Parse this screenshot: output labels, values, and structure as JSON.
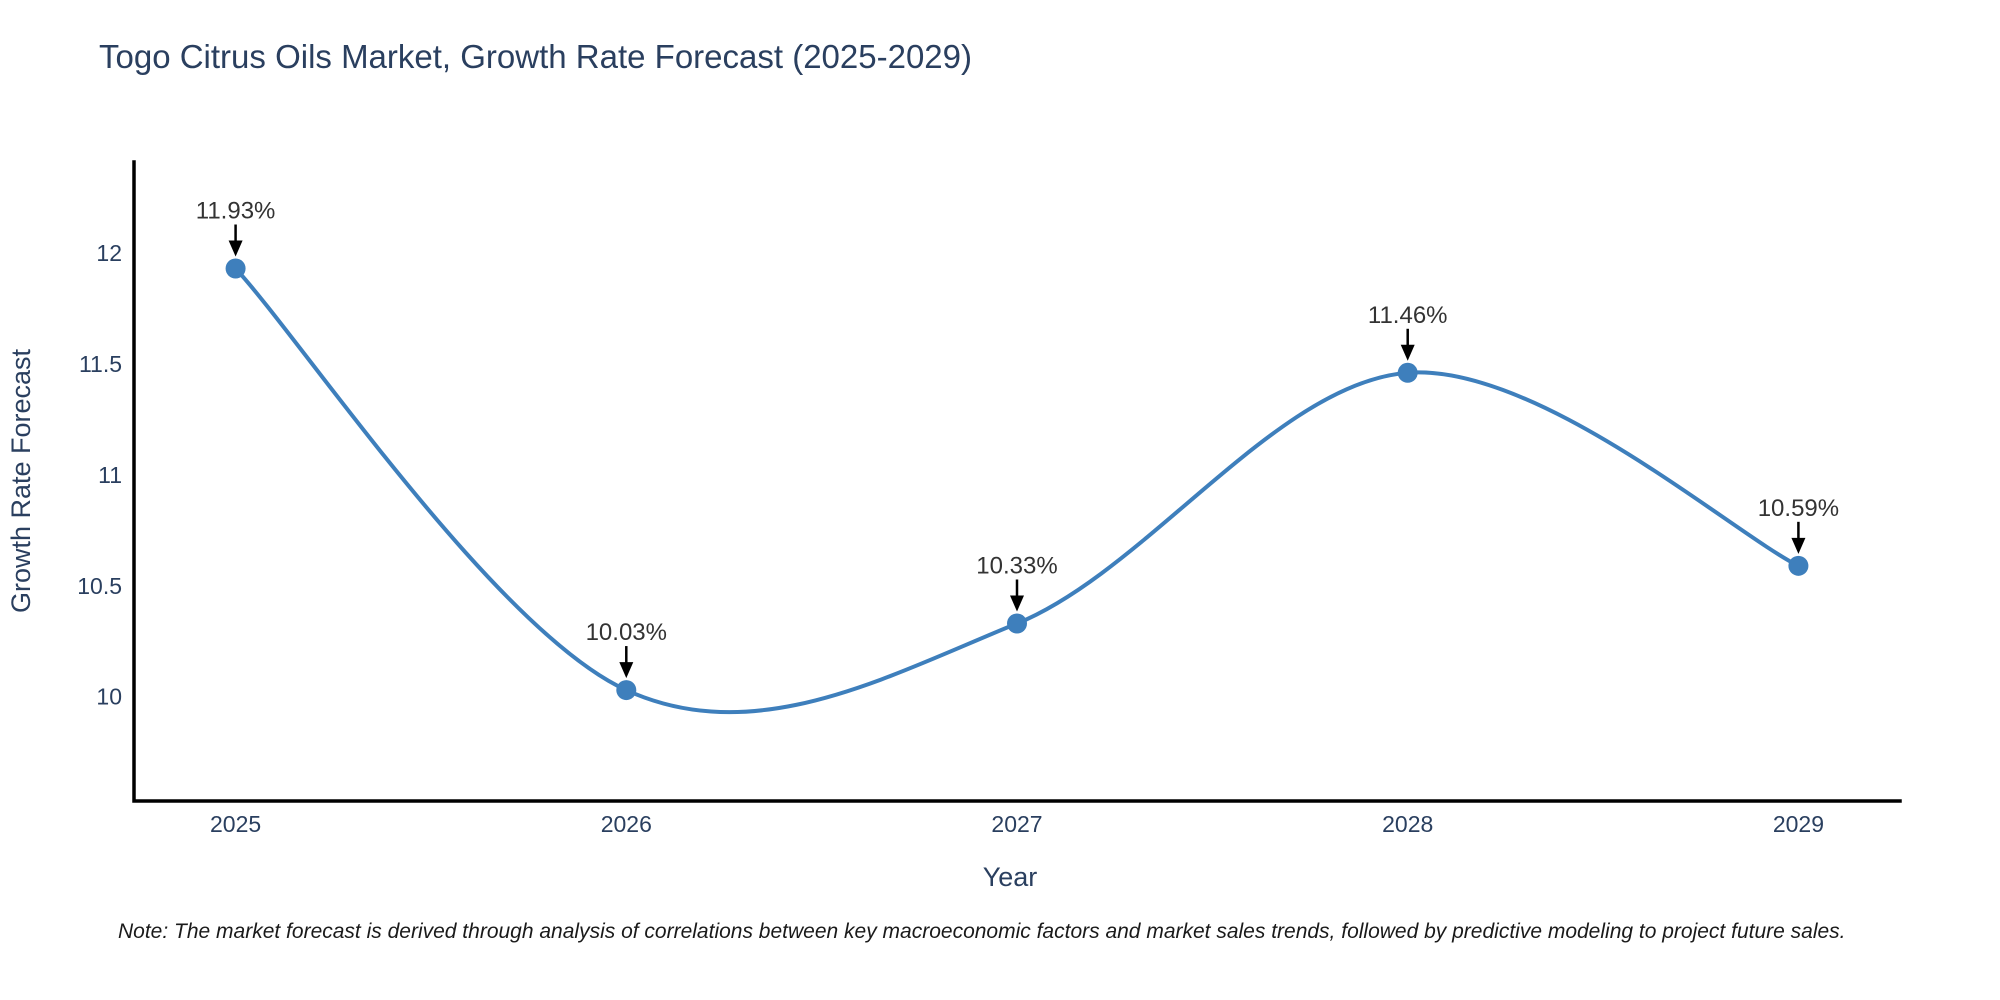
{
  "page": {
    "title": "Togo Citrus Oils Market, Growth Rate Forecast (2025-2029)",
    "note": "Note: The market forecast is derived through analysis of correlations between key macroeconomic factors and market sales trends, followed by predictive modeling to project future sales."
  },
  "chart_data": {
    "type": "line",
    "line_shape": "spline",
    "title": "Togo Citrus Oils Market, Growth Rate Forecast (2025-2029)",
    "xlabel": "Year",
    "ylabel": "Growth Rate Forecast",
    "x": [
      2025,
      2026,
      2027,
      2028,
      2029
    ],
    "values": [
      11.93,
      10.03,
      10.33,
      11.46,
      10.59
    ],
    "point_labels": [
      "11.93%",
      "10.03%",
      "10.33%",
      "11.46%",
      "10.59%"
    ],
    "xtick_labels": [
      "2025",
      "2026",
      "2027",
      "2028",
      "2029"
    ],
    "ytick_values": [
      10,
      10.5,
      11,
      11.5,
      12
    ],
    "ytick_labels": [
      "10",
      "10.5",
      "11",
      "11.5",
      "12"
    ],
    "xlim": [
      2024.74,
      2029.26
    ],
    "ylim": [
      9.53,
      12.41
    ],
    "grid": false,
    "legend": false,
    "annotations_have_arrows": true,
    "colors": {
      "line": "#3e7fbc",
      "marker": "#3e7fbc",
      "axis_line": "#000000",
      "title_text": "#2a3f5f",
      "axis_text": "#2a3f5f",
      "annotation_text": "#333333",
      "annotation_arrow": "#000000",
      "background": "#ffffff"
    }
  }
}
